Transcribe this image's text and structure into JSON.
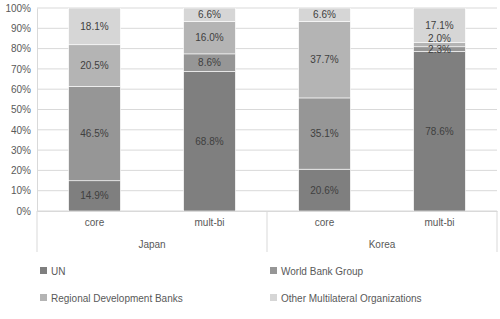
{
  "chart_data": {
    "type": "bar",
    "stacked": true,
    "data_labels": true,
    "grid": true,
    "legend": "bottom",
    "categories": [
      "core",
      "mult-bi",
      "core",
      "mult-bi"
    ],
    "groups": [
      "Japan",
      "Japan",
      "Korea",
      "Korea"
    ],
    "ylim": [
      0,
      100
    ],
    "yticks": [
      {
        "value": 0,
        "label": "0%"
      },
      {
        "value": 10,
        "label": "10%"
      },
      {
        "value": 20,
        "label": "20%"
      },
      {
        "value": 30,
        "label": "30%"
      },
      {
        "value": 40,
        "label": "40%"
      },
      {
        "value": 50,
        "label": "50%"
      },
      {
        "value": 60,
        "label": "60%"
      },
      {
        "value": 70,
        "label": "70%"
      },
      {
        "value": 80,
        "label": "80%"
      },
      {
        "value": 90,
        "label": "90%"
      },
      {
        "value": 100,
        "label": "100%"
      }
    ],
    "series": [
      {
        "name": "UN",
        "color": "#7f7f7f",
        "values": [
          14.9,
          68.8,
          20.6,
          78.6
        ],
        "value_labels": [
          "14.9%",
          "68.8%",
          "20.6%",
          "78.6%"
        ]
      },
      {
        "name": "World Bank Group",
        "color": "#969696",
        "values": [
          46.5,
          8.6,
          35.1,
          2.3
        ],
        "value_labels": [
          "46.5%",
          "8.6%",
          "35.1%",
          "2.3%"
        ]
      },
      {
        "name": "Regional Development Banks",
        "color": "#b4b4b4",
        "values": [
          20.5,
          16.0,
          37.7,
          2.0
        ],
        "value_labels": [
          "20.5%",
          "16.0%",
          "37.7%",
          "2.0%"
        ]
      },
      {
        "name": "Other Multilateral Organizations",
        "color": "#d6d6d6",
        "values": [
          18.1,
          6.6,
          6.6,
          17.1
        ],
        "value_labels": [
          "18.1%",
          "6.6%",
          "6.6%",
          "17.1%"
        ]
      }
    ]
  }
}
